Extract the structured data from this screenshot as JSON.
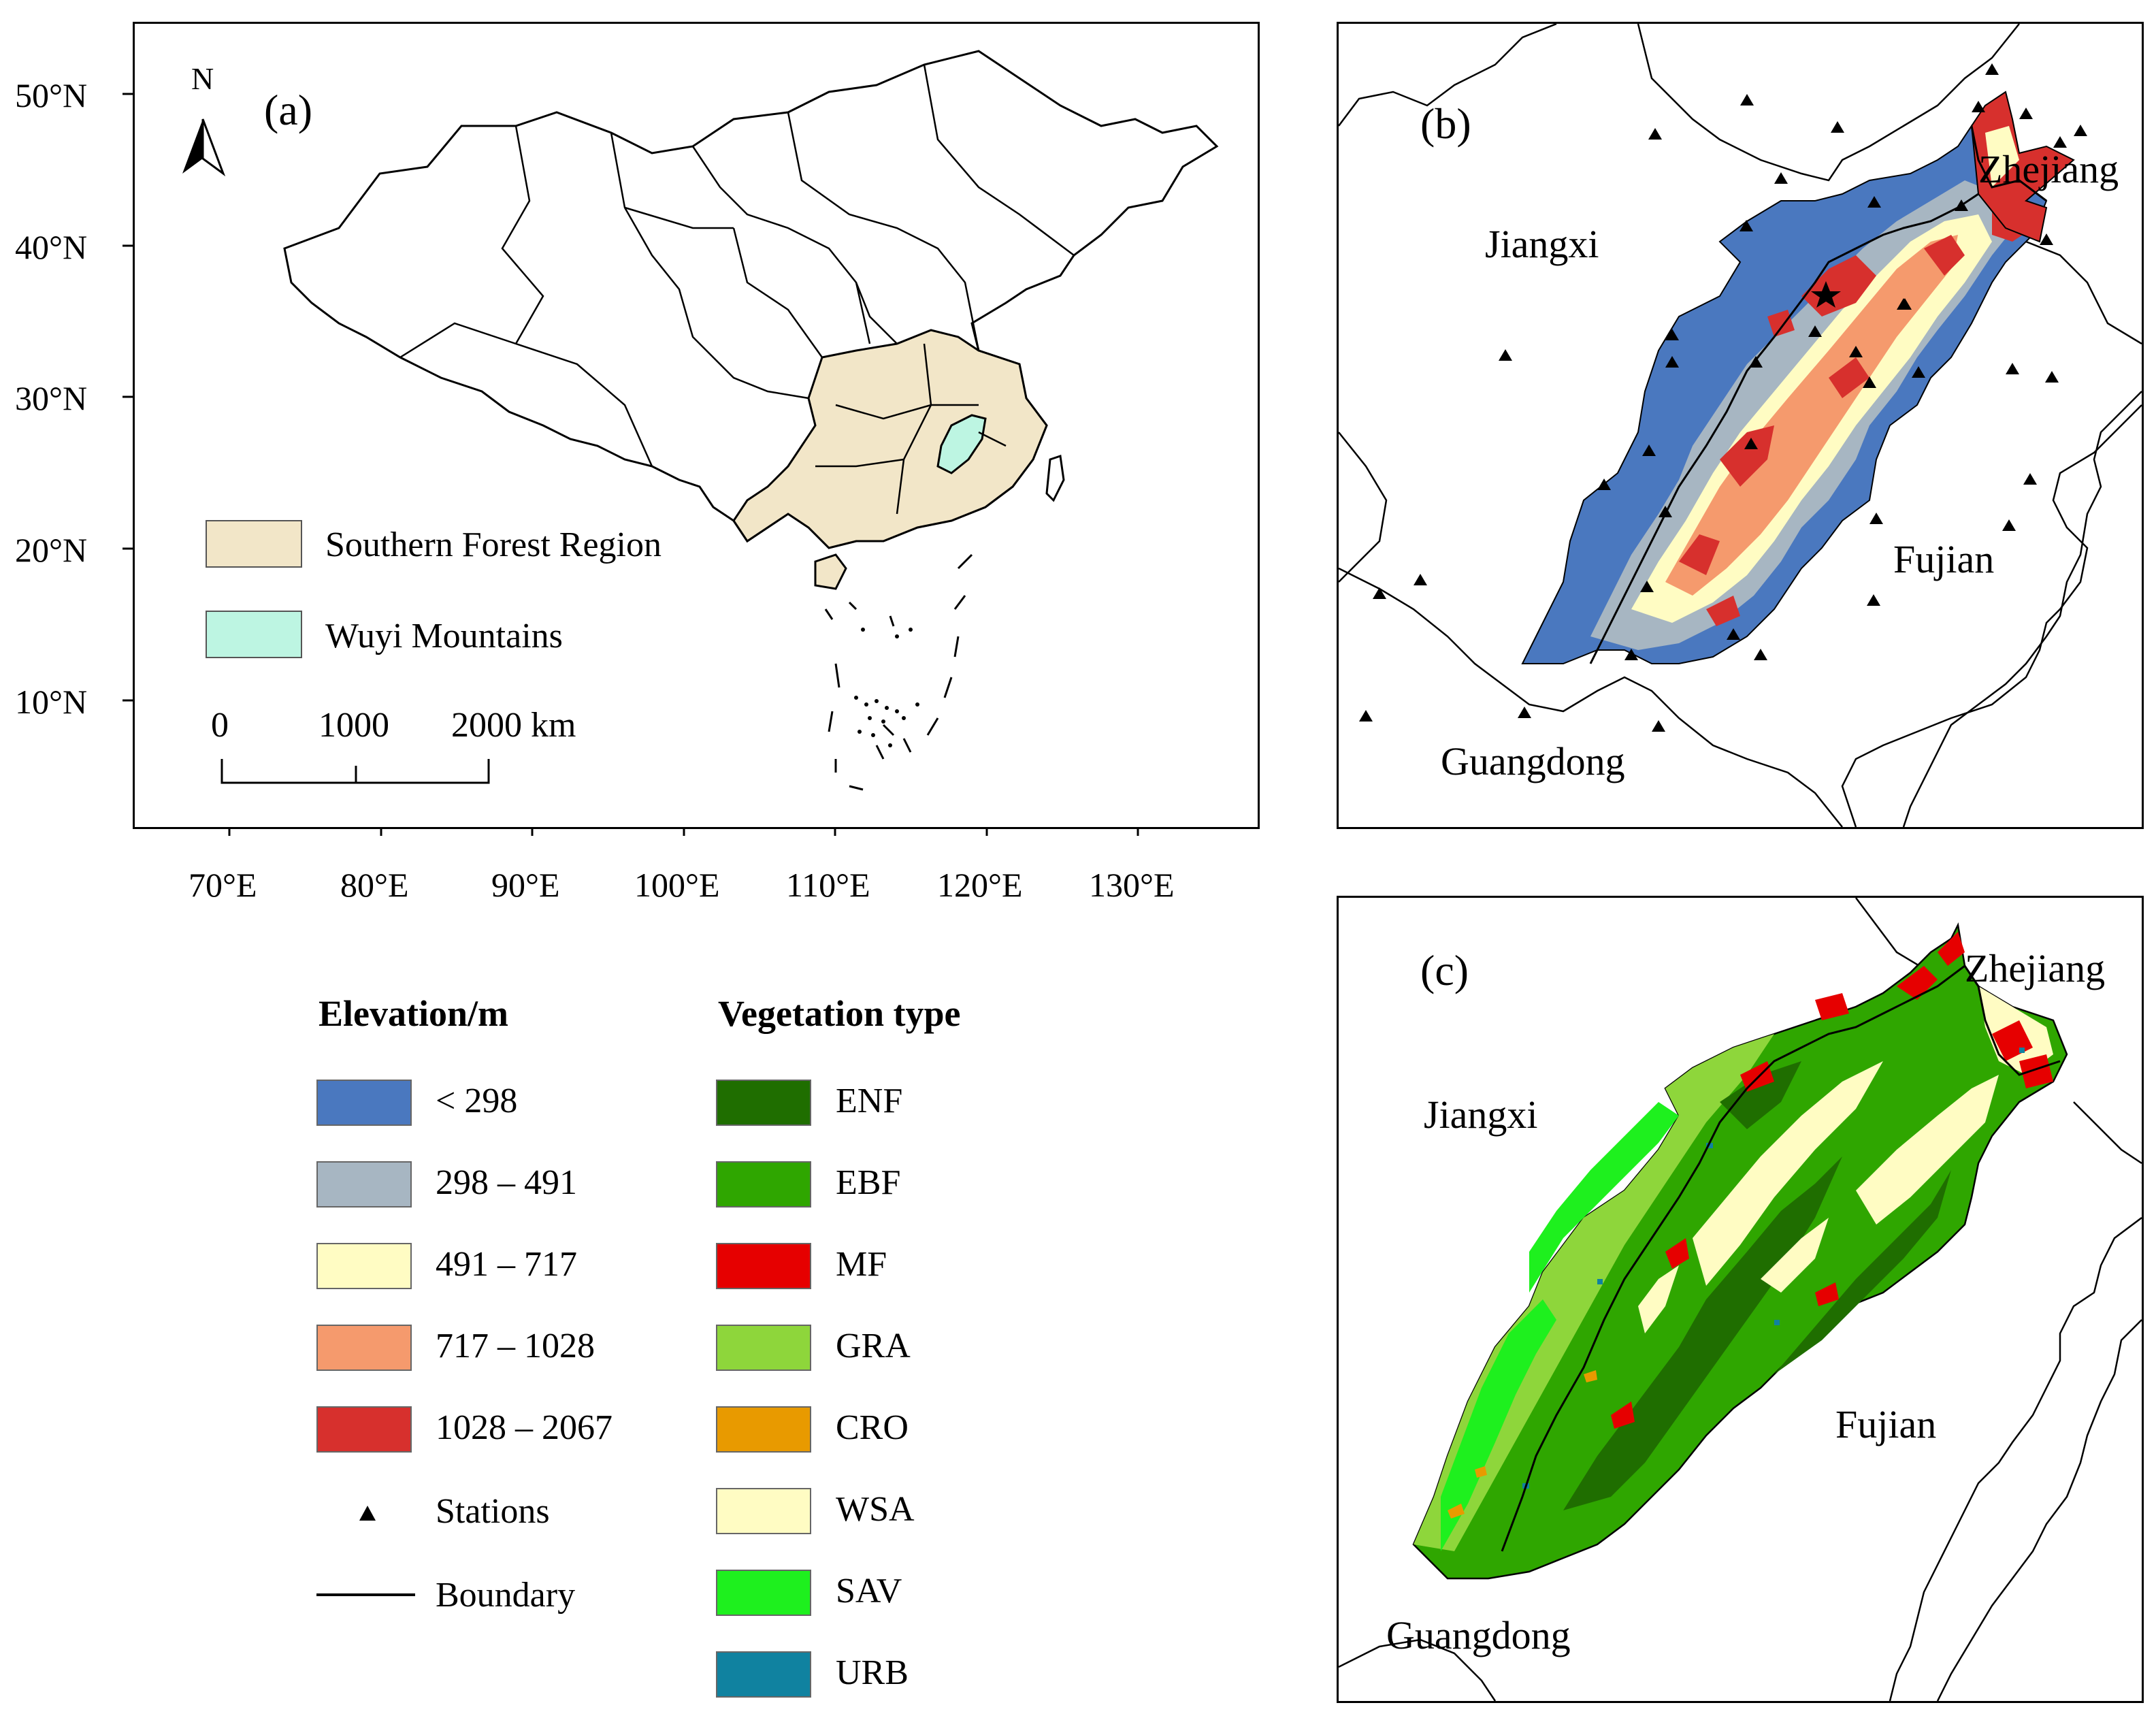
{
  "panel_a": {
    "label": "(a)",
    "north_label": "N",
    "legend": [
      {
        "label": "Southern Forest Region",
        "color": "#f2e6c8"
      },
      {
        "label": "Wuyi Mountains",
        "color": "#bdf5e2"
      }
    ],
    "scale_bar": {
      "ticks": [
        "0",
        "1000",
        "2000 km"
      ]
    },
    "lat_ticks": [
      "50°N",
      "40°N",
      "30°N",
      "20°N",
      "10°N"
    ],
    "lon_ticks": [
      "70°E",
      "80°E",
      "90°E",
      "100°E",
      "110°E",
      "120°E",
      "130°E"
    ]
  },
  "panel_b": {
    "label": "(b)",
    "province_labels": {
      "jiangxi": "Jiangxi",
      "zhejiang": "Zhejiang",
      "fujian": "Fujian",
      "guangdong": "Guangdong"
    }
  },
  "panel_c": {
    "label": "(c)",
    "province_labels": {
      "jiangxi": "Jiangxi",
      "zhejiang": "Zhejiang",
      "fujian": "Fujian",
      "guangdong": "Guangdong"
    }
  },
  "legend": {
    "elevation_title": "Elevation/m",
    "elevation": [
      {
        "label": "< 298",
        "color": "#4a78bf"
      },
      {
        "label": "298 – 491",
        "color": "#a7b6c2"
      },
      {
        "label": "491 – 717",
        "color": "#fffcc3"
      },
      {
        "label": "717 – 1028",
        "color": "#f59a6d"
      },
      {
        "label": "1028 – 2067",
        "color": "#d7302d"
      }
    ],
    "stations_label": "Stations",
    "boundary_label": "Boundary",
    "vegetation_title": "Vegetation type",
    "vegetation": [
      {
        "label": "ENF",
        "color": "#1f6e00"
      },
      {
        "label": "EBF",
        "color": "#2fa600"
      },
      {
        "label": "MF",
        "color": "#e60000"
      },
      {
        "label": "GRA",
        "color": "#8ed63b"
      },
      {
        "label": "CRO",
        "color": "#e89a00"
      },
      {
        "label": "WSA",
        "color": "#fffcc3"
      },
      {
        "label": "SAV",
        "color": "#1ef01e"
      },
      {
        "label": "URB",
        "color": "#1082a0"
      }
    ]
  }
}
